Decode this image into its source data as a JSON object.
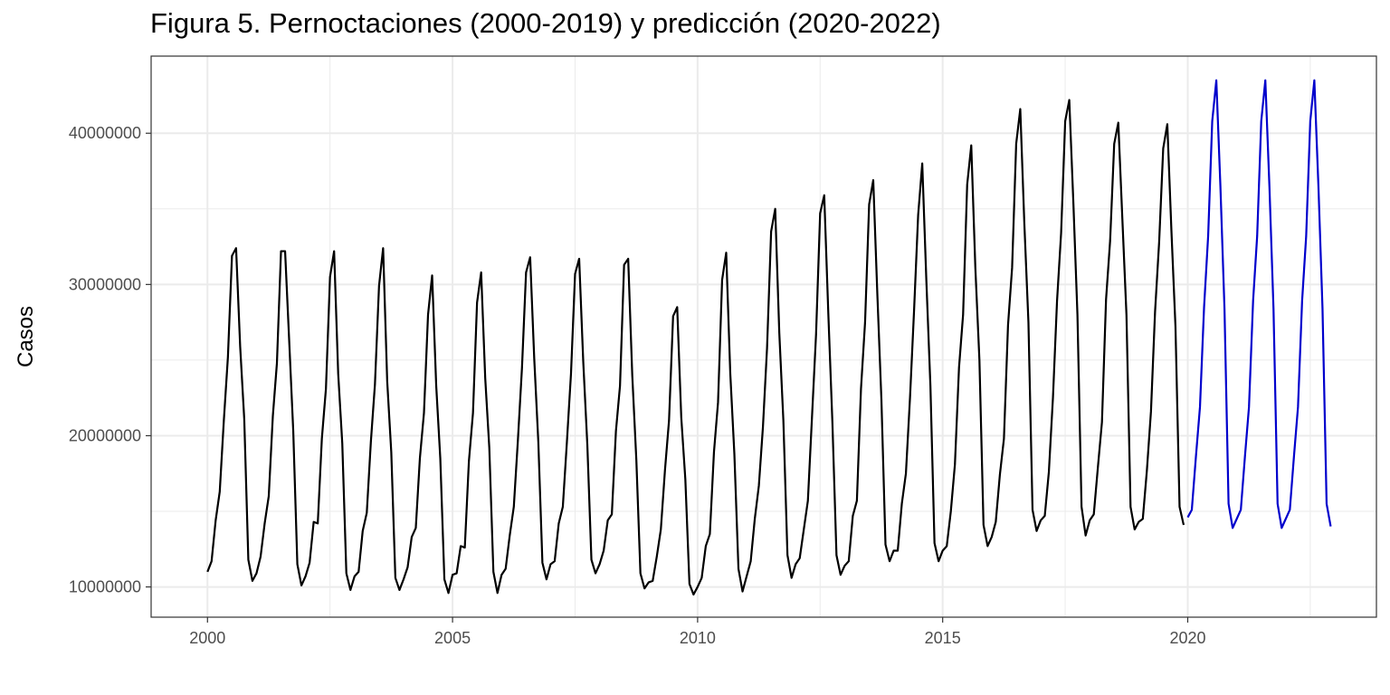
{
  "chart_data": {
    "type": "line",
    "title": "Figura 5. Pernoctaciones (2000-2019) y predicción (2020-2022)",
    "xlabel": "",
    "ylabel": "Casos",
    "xlim": [
      1998.85,
      2023.85
    ],
    "ylim": [
      8000000,
      45100000
    ],
    "x_ticks": [
      2000,
      2005,
      2010,
      2015,
      2020
    ],
    "y_ticks": [
      10000000,
      20000000,
      30000000,
      40000000
    ],
    "x_tick_labels": [
      "2000",
      "2005",
      "2010",
      "2015",
      "2020"
    ],
    "y_tick_labels": [
      "10000000",
      "20000000",
      "30000000",
      "40000000"
    ],
    "x_minor_ticks": [
      2002.5,
      2007.5,
      2012.5,
      2017.5,
      2022.5
    ],
    "y_minor_ticks": [
      15000000,
      25000000,
      35000000
    ],
    "grid": true,
    "legend": "none",
    "x_start": 2000,
    "x_step": 0.0833333,
    "colors": {
      "observed": "#000000",
      "forecast": "#0000cc",
      "grid": "#ebebeb",
      "panel_border": "#333333"
    },
    "series": [
      {
        "role": "observed",
        "start": "2000-01",
        "values": [
          11000000,
          11700000,
          14400000,
          16300000,
          21000000,
          25200000,
          31900000,
          32400000,
          25900000,
          21100000,
          11800000,
          10400000,
          10900000,
          12000000,
          14200000,
          16000000,
          21300000,
          24800000,
          32200000,
          32200000,
          26300000,
          20300000,
          11500000,
          10100000,
          10700000,
          11600000,
          14300000,
          14200000,
          19800000,
          23100000,
          30500000,
          32200000,
          24100000,
          19500000,
          10900000,
          9800000,
          10700000,
          11000000,
          13700000,
          14900000,
          19600000,
          23400000,
          29900000,
          32400000,
          23600000,
          18900000,
          10600000,
          9800000,
          10500000,
          11300000,
          13300000,
          13900000,
          18500000,
          21500000,
          28000000,
          30600000,
          23300000,
          18500000,
          10500000,
          9600000,
          10800000,
          10900000,
          12700000,
          12600000,
          18300000,
          21500000,
          28800000,
          30800000,
          23800000,
          19200000,
          11000000,
          9600000,
          10800000,
          11200000,
          13400000,
          15300000,
          19700000,
          24500000,
          30800000,
          31800000,
          25100000,
          19600000,
          11600000,
          10500000,
          11500000,
          11700000,
          14200000,
          15300000,
          19600000,
          24100000,
          30700000,
          31700000,
          24900000,
          19400000,
          11800000,
          10900000,
          11500000,
          12400000,
          14400000,
          14800000,
          20300000,
          23300000,
          31300000,
          31700000,
          24000000,
          18400000,
          10900000,
          9900000,
          10300000,
          10400000,
          12000000,
          13800000,
          17700000,
          21000000,
          27900000,
          28500000,
          21200000,
          17100000,
          10200000,
          9500000,
          10000000,
          10600000,
          12700000,
          13500000,
          18900000,
          22200000,
          30300000,
          32100000,
          24100000,
          18800000,
          11200000,
          9700000,
          10700000,
          11700000,
          14500000,
          16700000,
          20600000,
          25800000,
          33500000,
          35000000,
          26800000,
          21000000,
          12100000,
          10600000,
          11500000,
          11900000,
          13800000,
          15700000,
          21200000,
          26700000,
          34700000,
          35900000,
          28100000,
          20900000,
          12100000,
          10800000,
          11400000,
          11700000,
          14700000,
          15700000,
          23100000,
          27500000,
          35300000,
          36900000,
          29400000,
          22400000,
          12800000,
          11700000,
          12400000,
          12400000,
          15500000,
          17500000,
          22500000,
          28300000,
          34600000,
          38000000,
          30300000,
          23300000,
          12900000,
          11700000,
          12400000,
          12700000,
          15000000,
          18100000,
          24500000,
          28000000,
          36600000,
          39200000,
          31100000,
          25000000,
          14100000,
          12700000,
          13300000,
          14300000,
          17400000,
          19800000,
          27300000,
          31100000,
          39300000,
          41600000,
          34000000,
          27500000,
          15100000,
          13700000,
          14400000,
          14700000,
          17600000,
          22500000,
          28900000,
          33400000,
          40800000,
          42200000,
          35400000,
          28000000,
          15300000,
          13400000,
          14400000,
          14800000,
          17900000,
          20900000,
          29000000,
          32900000,
          39300000,
          40700000,
          34300000,
          28000000,
          15300000,
          13800000,
          14300000,
          14500000,
          17700000,
          21600000,
          28200000,
          32800000,
          39000000,
          40600000,
          33600000,
          27200000,
          15300000,
          14100000
        ]
      },
      {
        "role": "forecast",
        "start": "2020-01",
        "values": [
          14600000,
          15100000,
          18600000,
          21900000,
          28500000,
          33200000,
          40800000,
          43500000,
          36500000,
          28400000,
          15500000,
          13900000,
          14500000,
          15100000,
          18600000,
          21900000,
          28900000,
          33200000,
          40800000,
          43500000,
          36500000,
          28400000,
          15500000,
          13900000,
          14500000,
          15100000,
          18600000,
          21900000,
          28900000,
          33200000,
          40800000,
          43500000,
          36500000,
          28400000,
          15500000,
          14000000
        ]
      }
    ]
  }
}
